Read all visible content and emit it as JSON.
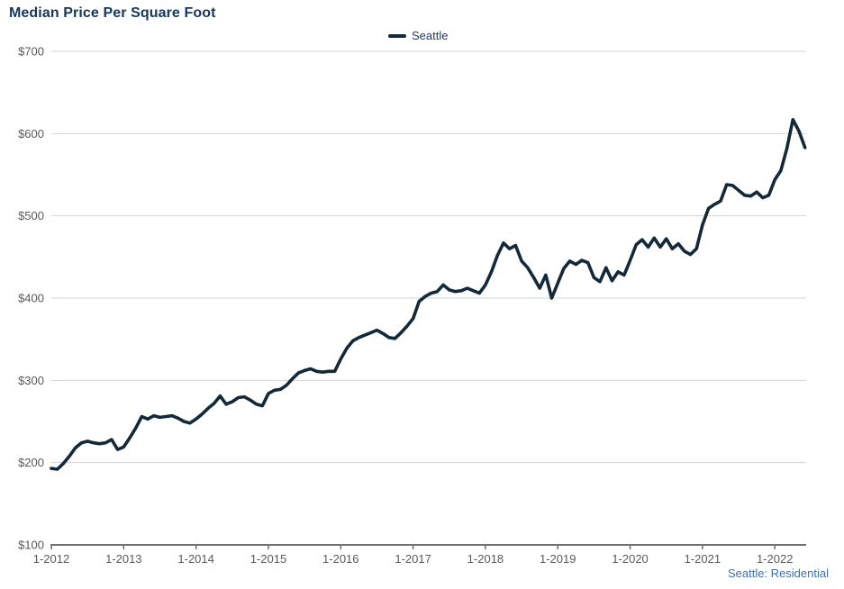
{
  "colors": {
    "title": "#17365d",
    "legend_text": "#1f3a5f",
    "series_line": "#13293a",
    "gridline": "#d2d4d5",
    "axis_line": "#6d6e71",
    "tick_label": "#595959",
    "footer_text": "#3e6fae",
    "background": "#ffffff"
  },
  "chart_data": {
    "type": "line",
    "title": "Median Price Per Square Foot",
    "legend": {
      "label": "Seattle"
    },
    "footer_note": "Seattle: Residential",
    "grid": "horizontal-only",
    "legend_position": "top-center",
    "ylim": [
      100,
      700
    ],
    "y_ticks": [
      100,
      200,
      300,
      400,
      500,
      600,
      700
    ],
    "y_tick_labels": [
      "$100",
      "$200",
      "$300",
      "$400",
      "$500",
      "$600",
      "$700"
    ],
    "x_tick_labels": [
      "1-2012",
      "1-2013",
      "1-2014",
      "1-2015",
      "1-2016",
      "1-2017",
      "1-2018",
      "1-2019",
      "1-2020",
      "1-2021",
      "1-2022"
    ],
    "x_interval": "monthly",
    "x_start_label": "1-2012",
    "x_end_label": "6-2022",
    "series": [
      {
        "name": "Seattle",
        "color": "#13293a",
        "values": [
          193,
          192,
          199,
          208,
          218,
          224,
          226,
          224,
          223,
          224,
          228,
          216,
          219,
          230,
          242,
          256,
          253,
          257,
          255,
          256,
          257,
          254,
          250,
          248,
          253,
          259,
          266,
          272,
          281,
          271,
          274,
          279,
          280,
          276,
          271,
          269,
          284,
          288,
          289,
          294,
          302,
          309,
          312,
          314,
          311,
          310,
          311,
          311,
          326,
          339,
          348,
          352,
          355,
          358,
          361,
          357,
          352,
          351,
          358,
          366,
          375,
          396,
          402,
          406,
          408,
          416,
          410,
          408,
          409,
          412,
          409,
          406,
          416,
          432,
          452,
          467,
          460,
          464,
          445,
          437,
          425,
          412,
          428,
          400,
          418,
          436,
          445,
          441,
          446,
          443,
          425,
          420,
          437,
          421,
          432,
          428,
          446,
          465,
          471,
          462,
          473,
          462,
          472,
          460,
          466,
          457,
          453,
          460,
          489,
          509,
          514,
          518,
          538,
          537,
          531,
          525,
          524,
          529,
          522,
          525,
          544,
          555,
          582,
          617,
          603,
          583
        ]
      }
    ]
  }
}
